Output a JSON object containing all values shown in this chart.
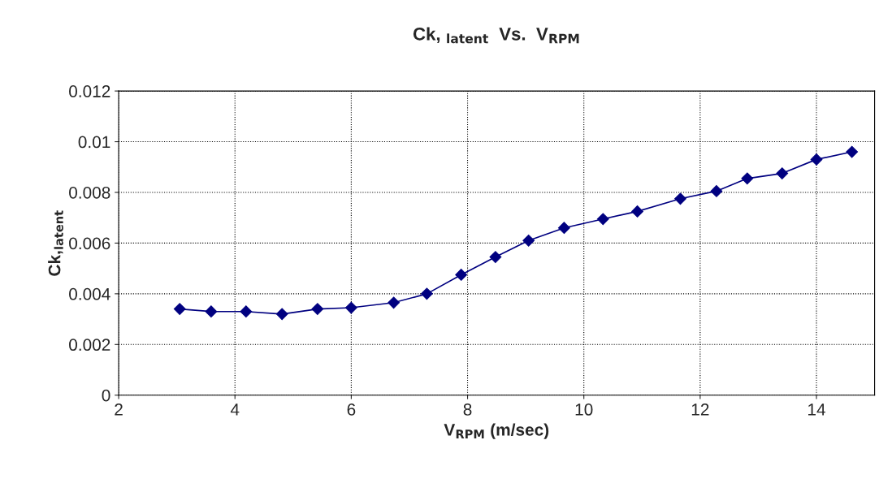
{
  "chart_data": {
    "type": "line",
    "title": "Ck, $_{latent}$  Vs.  V$_{RPM}$",
    "xlabel": "V$_{RPM}$ (m/sec)",
    "ylabel": "Ck,$_{latent}$",
    "x": [
      3.05,
      3.59,
      4.19,
      4.81,
      5.42,
      6.0,
      6.73,
      7.3,
      7.89,
      8.48,
      9.05,
      9.66,
      10.33,
      10.92,
      11.66,
      12.28,
      12.81,
      13.41,
      14.0,
      14.61
    ],
    "series": [
      {
        "color": "#000080",
        "values": [
          0.0034,
          0.0033,
          0.0033,
          0.0032,
          0.0034,
          0.00345,
          0.00365,
          0.004,
          0.00475,
          0.00545,
          0.0061,
          0.0066,
          0.00695,
          0.00725,
          0.00775,
          0.00805,
          0.00855,
          0.00875,
          0.0093,
          0.0096
        ]
      }
    ],
    "xlim": [
      2,
      15
    ],
    "xticks": [
      2,
      4,
      6,
      8,
      10,
      12,
      14
    ],
    "ylim": [
      0,
      0.012
    ],
    "yticks": [
      0,
      0.002,
      0.004,
      0.006,
      0.008,
      {
        "value": 0.01,
        "label": "0.01"
      },
      0.012
    ],
    "grid": true,
    "marker": "diamond",
    "line_style": "solid",
    "legend": false
  }
}
